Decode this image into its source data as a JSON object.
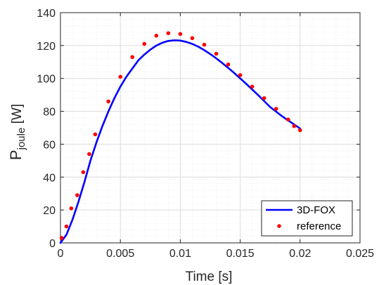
{
  "chart_data": {
    "type": "line",
    "xlabel": "Time [s]",
    "ylabel_main": "P",
    "ylabel_sub": "joule",
    "ylabel_unit": " [W]",
    "xlim": [
      0,
      0.025
    ],
    "ylim": [
      0,
      140
    ],
    "xticks": [
      0,
      0.005,
      0.01,
      0.015,
      0.02,
      0.025
    ],
    "xtick_labels": [
      "0",
      "0.005",
      "0.01",
      "0.015",
      "0.02",
      "0.025"
    ],
    "yticks": [
      0,
      20,
      40,
      60,
      80,
      100,
      120,
      140
    ],
    "ytick_labels": [
      "0",
      "20",
      "40",
      "60",
      "80",
      "100",
      "120",
      "140"
    ],
    "grid": true,
    "minor_grid": true,
    "legend_position": "bottom-right",
    "series": [
      {
        "name": "3D-FOX",
        "style": "line",
        "color": "#0000ff",
        "x": [
          0,
          0.0005,
          0.001,
          0.0015,
          0.002,
          0.0025,
          0.003,
          0.0035,
          0.004,
          0.0045,
          0.005,
          0.0055,
          0.006,
          0.0065,
          0.007,
          0.0075,
          0.008,
          0.0085,
          0.009,
          0.0095,
          0.01,
          0.0105,
          0.011,
          0.0115,
          0.012,
          0.0125,
          0.013,
          0.0135,
          0.014,
          0.0145,
          0.015,
          0.0155,
          0.016,
          0.0165,
          0.017,
          0.0175,
          0.018,
          0.0185,
          0.019,
          0.0195,
          0.02
        ],
        "y": [
          0,
          5,
          14,
          25,
          37,
          50,
          61,
          71,
          80,
          88,
          95,
          101,
          106,
          111,
          114.5,
          117.5,
          120,
          121.7,
          122.8,
          123.2,
          123,
          122.2,
          121,
          119.3,
          117.2,
          114.8,
          112.2,
          109.4,
          106.4,
          103.3,
          100,
          96.7,
          93.3,
          89.8,
          86.2,
          82.6,
          79.8,
          77,
          74.5,
          72,
          69.5
        ]
      },
      {
        "name": "reference",
        "style": "markers",
        "color": "#ff0000",
        "x": [
          0.0001,
          0.0005,
          0.0009,
          0.0014,
          0.0019,
          0.0024,
          0.0029,
          0.004,
          0.005,
          0.006,
          0.007,
          0.008,
          0.009,
          0.01,
          0.011,
          0.012,
          0.013,
          0.014,
          0.015,
          0.016,
          0.017,
          0.018,
          0.019,
          0.0195,
          0.02
        ],
        "y": [
          3,
          10,
          21,
          29,
          43,
          54,
          66,
          86,
          101,
          113,
          121,
          126,
          127.5,
          127,
          124.5,
          120.5,
          115,
          108.5,
          102,
          95,
          88,
          81.5,
          75,
          71,
          68.5
        ]
      }
    ]
  }
}
